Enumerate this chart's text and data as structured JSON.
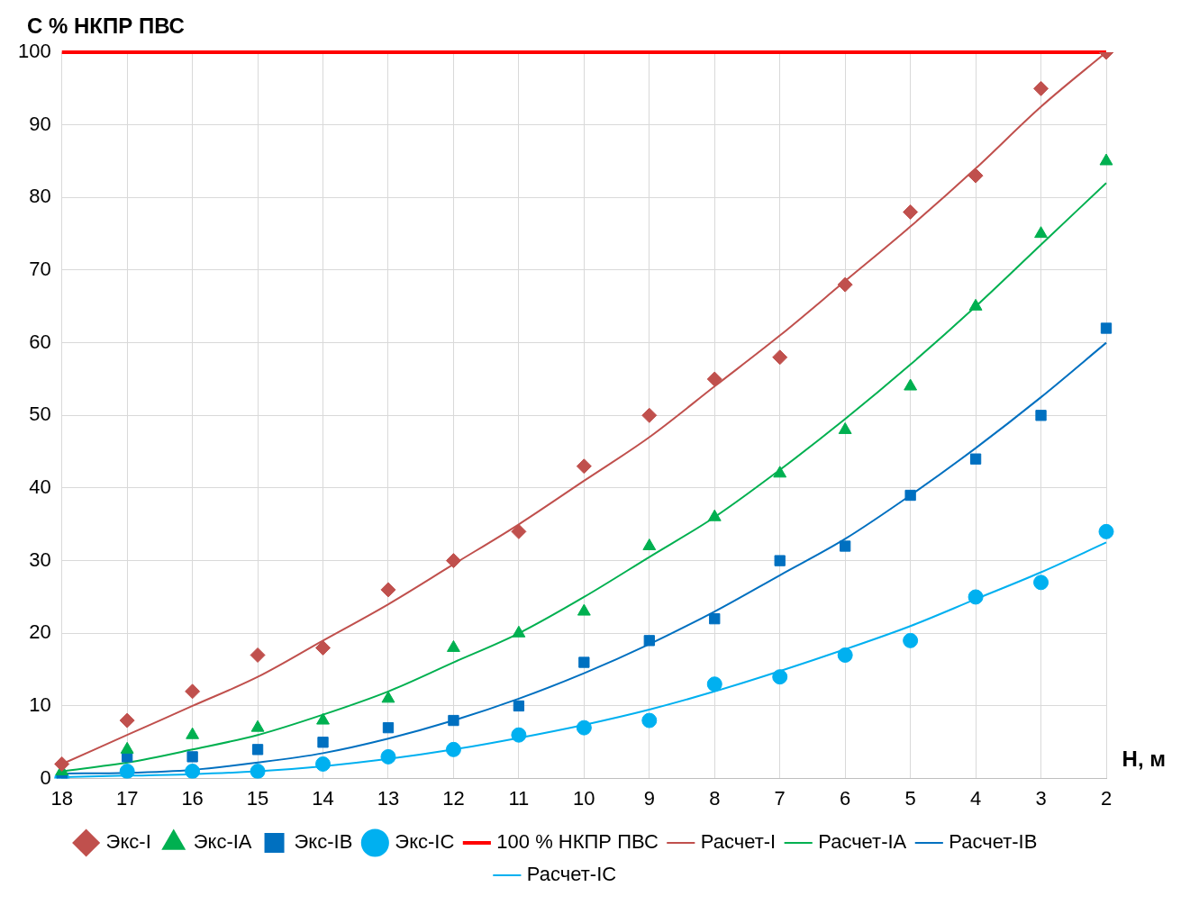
{
  "chart_data": {
    "type": "line",
    "ylabel": "C % НКПР ПВС",
    "xlabel": "H, м",
    "categories": [
      "18",
      "17",
      "16",
      "15",
      "14",
      "13",
      "12",
      "11",
      "10",
      "9",
      "8",
      "7",
      "6",
      "5",
      "4",
      "3",
      "2"
    ],
    "ylim": [
      0,
      100
    ],
    "yticks": [
      0,
      10,
      20,
      30,
      40,
      50,
      60,
      70,
      80,
      90,
      100
    ],
    "grid": true,
    "legend": "bottom",
    "ref_lines": [
      {
        "axis": "y",
        "value": 100,
        "label": "100 % НКПР ПВС",
        "color": "#ff0000"
      }
    ],
    "series": [
      {
        "name": "Экс-I",
        "type": "scatter",
        "marker": "diamond",
        "color": "#c0504d",
        "values": [
          2,
          8,
          12,
          17,
          18,
          26,
          30,
          34,
          43,
          50,
          55,
          58,
          68,
          78,
          83,
          95,
          100
        ]
      },
      {
        "name": "Экс-IA",
        "type": "scatter",
        "marker": "triangle",
        "color": "#00b050",
        "values": [
          1,
          4,
          6,
          7,
          8,
          11,
          18,
          20,
          23,
          32,
          36,
          42,
          48,
          54,
          65,
          75,
          85
        ]
      },
      {
        "name": "Экс-IB",
        "type": "scatter",
        "marker": "square",
        "color": "#0070c0",
        "values": [
          0,
          3,
          3,
          4,
          5,
          7,
          8,
          10,
          16,
          19,
          22,
          30,
          32,
          39,
          44,
          50,
          62
        ]
      },
      {
        "name": "Экс-IC",
        "type": "scatter",
        "marker": "circle",
        "color": "#00b0f0",
        "values": [
          0,
          1,
          1,
          1,
          2,
          3,
          4,
          6,
          7,
          8,
          13,
          14,
          17,
          19,
          25,
          27,
          34
        ]
      },
      {
        "name": "Расчет-I",
        "type": "line",
        "marker": "none",
        "color": "#c0504d",
        "values": [
          2,
          6,
          10,
          14,
          19,
          24,
          29.5,
          35,
          41,
          47,
          54,
          61,
          68.5,
          76,
          84,
          92.5,
          100
        ]
      },
      {
        "name": "Расчет-IA",
        "type": "line",
        "marker": "none",
        "color": "#00b050",
        "values": [
          1,
          2.2,
          4,
          6,
          8.8,
          12,
          16,
          20,
          25,
          30.5,
          36,
          42.5,
          49.5,
          57,
          65,
          73.5,
          82
        ]
      },
      {
        "name": "Расчет-IB",
        "type": "line",
        "marker": "none",
        "color": "#0070c0",
        "values": [
          0.7,
          0.8,
          1.2,
          2.2,
          3.5,
          5.5,
          8,
          11,
          14.5,
          18.5,
          23,
          28,
          33,
          39,
          45.5,
          52.5,
          60
        ]
      },
      {
        "name": "Расчет-IC",
        "type": "line",
        "marker": "none",
        "color": "#00b0f0",
        "values": [
          0.2,
          0.4,
          0.6,
          1,
          1.7,
          2.7,
          4,
          5.6,
          7.4,
          9.5,
          12,
          14.8,
          17.8,
          21,
          24.7,
          28.4,
          32.5
        ]
      }
    ]
  }
}
